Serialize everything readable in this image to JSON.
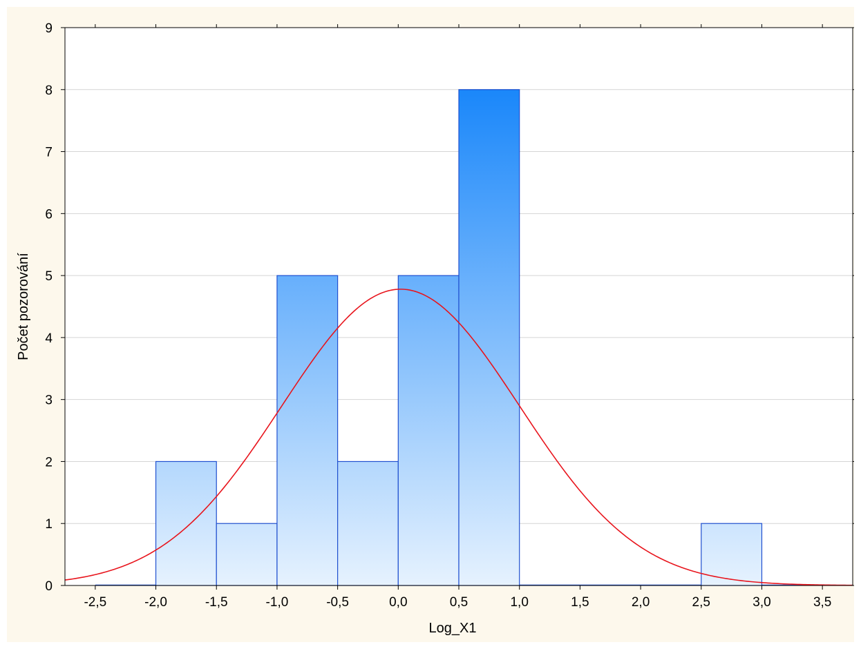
{
  "chart_data": {
    "type": "bar",
    "title": "",
    "xlabel": "Log_X1",
    "ylabel": "Počet pozorování",
    "xlim": [
      -2.75,
      3.75
    ],
    "ylim": [
      0,
      9
    ],
    "x_ticks": [
      -2.5,
      -2.0,
      -1.5,
      -1.0,
      -0.5,
      0.0,
      0.5,
      1.0,
      1.5,
      2.0,
      2.5,
      3.0,
      3.5
    ],
    "x_tick_labels": [
      "-2,5",
      "-2,0",
      "-1,5",
      "-1,0",
      "-0,5",
      "0,0",
      "0,5",
      "1,0",
      "1,5",
      "2,0",
      "2,5",
      "3,0",
      "3,5"
    ],
    "y_ticks": [
      0,
      1,
      2,
      3,
      4,
      5,
      6,
      7,
      8,
      9
    ],
    "y_tick_labels": [
      "0",
      "1",
      "2",
      "3",
      "4",
      "5",
      "6",
      "7",
      "8",
      "9"
    ],
    "grid": true,
    "bins": [
      {
        "from": -2.5,
        "to": -2.0,
        "count": 0
      },
      {
        "from": -2.0,
        "to": -1.5,
        "count": 2
      },
      {
        "from": -1.5,
        "to": -1.0,
        "count": 1
      },
      {
        "from": -1.0,
        "to": -0.5,
        "count": 5
      },
      {
        "from": -0.5,
        "to": 0.0,
        "count": 2
      },
      {
        "from": 0.0,
        "to": 0.5,
        "count": 5
      },
      {
        "from": 0.5,
        "to": 1.0,
        "count": 8
      },
      {
        "from": 1.0,
        "to": 1.5,
        "count": 0
      },
      {
        "from": 1.5,
        "to": 2.0,
        "count": 0
      },
      {
        "from": 2.0,
        "to": 2.5,
        "count": 0
      },
      {
        "from": 2.5,
        "to": 3.0,
        "count": 1
      },
      {
        "from": 3.0,
        "to": 3.5,
        "count": 0
      }
    ],
    "normal_curve": {
      "mean": 0.02,
      "sd": 0.98,
      "peak": 4.78
    },
    "colors": {
      "bar_top": "#1a87fa",
      "bar_bottom": "#e6f2fe",
      "bar_edge": "#1f4fcf",
      "curve": "#e8141c",
      "grid": "#d4d4d4",
      "plot_bg": "#ffffff",
      "frame_bg": "#fdf8ec"
    }
  }
}
